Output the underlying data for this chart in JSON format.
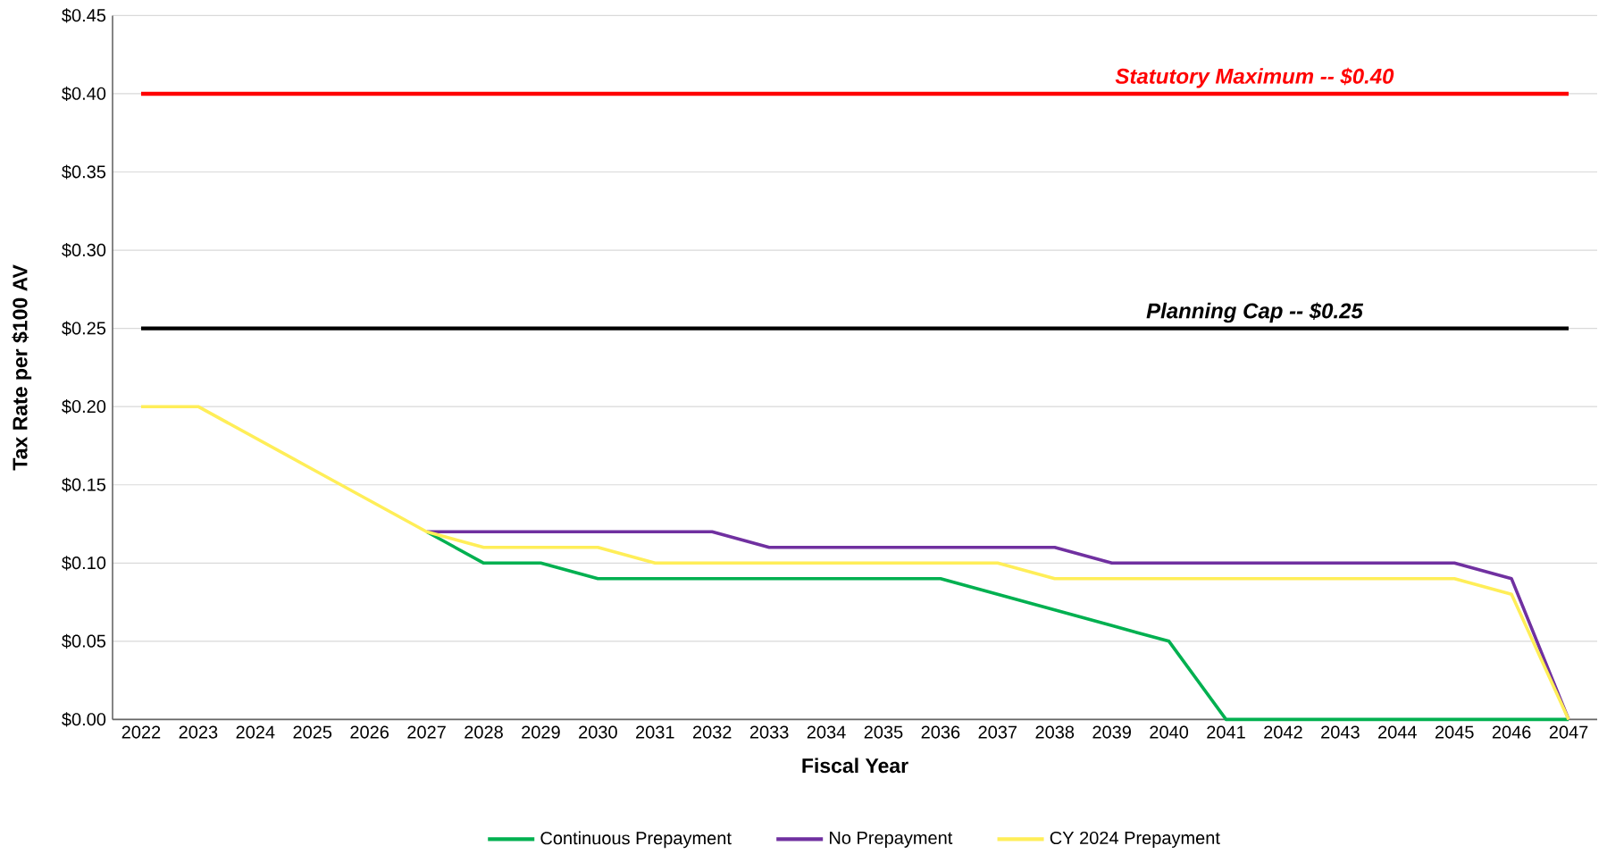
{
  "chart_data": {
    "type": "line",
    "xlabel": "Fiscal Year",
    "ylabel": "Tax Rate per $100 AV",
    "categories": [
      "2022",
      "2023",
      "2024",
      "2025",
      "2026",
      "2027",
      "2028",
      "2029",
      "2030",
      "2031",
      "2032",
      "2033",
      "2034",
      "2035",
      "2036",
      "2037",
      "2038",
      "2039",
      "2040",
      "2041",
      "2042",
      "2043",
      "2044",
      "2045",
      "2046",
      "2047"
    ],
    "series": [
      {
        "name": "Continuous Prepayment",
        "color": "#00b050",
        "values": [
          null,
          null,
          null,
          null,
          null,
          0.12,
          0.1,
          0.1,
          0.09,
          0.09,
          0.09,
          0.09,
          0.09,
          0.09,
          0.09,
          0.08,
          0.07,
          0.06,
          0.05,
          0,
          0,
          0,
          0,
          0,
          0,
          0
        ]
      },
      {
        "name": "No Prepayment",
        "color": "#7030a0",
        "values": [
          null,
          null,
          null,
          null,
          null,
          0.12,
          0.12,
          0.12,
          0.12,
          0.12,
          0.12,
          0.11,
          0.11,
          0.11,
          0.11,
          0.11,
          0.11,
          0.1,
          0.1,
          0.1,
          0.1,
          0.1,
          0.1,
          0.1,
          0.09,
          0
        ]
      },
      {
        "name": "CY 2024 Prepayment",
        "color": "#ffee58",
        "values": [
          0.2,
          0.2,
          0.18,
          0.16,
          0.14,
          0.12,
          0.11,
          0.11,
          0.11,
          0.1,
          0.1,
          0.1,
          0.1,
          0.1,
          0.1,
          0.1,
          0.09,
          0.09,
          0.09,
          0.09,
          0.09,
          0.09,
          0.09,
          0.09,
          0.08,
          0
        ]
      }
    ],
    "ylim": [
      0,
      0.45
    ],
    "yticks": [
      {
        "value": 0,
        "label": "$0.00"
      },
      {
        "value": 0.05,
        "label": "$0.05"
      },
      {
        "value": 0.1,
        "label": "$0.10"
      },
      {
        "value": 0.15,
        "label": "$0.15"
      },
      {
        "value": 0.2,
        "label": "$0.20"
      },
      {
        "value": 0.25,
        "label": "$0.25"
      },
      {
        "value": 0.3,
        "label": "$0.30"
      },
      {
        "value": 0.35,
        "label": "$0.35"
      },
      {
        "value": 0.4,
        "label": "$0.40"
      },
      {
        "value": 0.45,
        "label": "$0.45"
      }
    ],
    "ref_lines": [
      {
        "axis": "y",
        "value": 0.4,
        "label": "Statutory Maximum -- $0.40",
        "color": "#ff0000"
      },
      {
        "axis": "y",
        "value": 0.25,
        "label": "Planning Cap -- $0.25",
        "color": "#000000"
      }
    ],
    "grid": "y",
    "legend": "bottom",
    "marker": "none",
    "line_style": "solid"
  }
}
